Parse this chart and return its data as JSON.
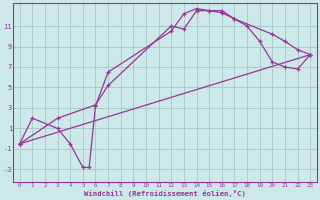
{
  "background_color": "#cce8e8",
  "grid_color": "#aacccc",
  "line_color": "#993399",
  "xlabel": "Windchill (Refroidissement éolien,°C)",
  "xlim": [
    -0.5,
    23.5
  ],
  "ylim": [
    -4.2,
    13.2
  ],
  "yticks": [
    -3,
    -1,
    1,
    3,
    5,
    7,
    9,
    11
  ],
  "xticks": [
    0,
    1,
    2,
    3,
    4,
    5,
    6,
    7,
    8,
    9,
    10,
    11,
    12,
    13,
    14,
    15,
    16,
    17,
    18,
    19,
    20,
    21,
    22,
    23
  ],
  "line1_x": [
    0,
    1,
    3,
    4,
    5,
    5.5,
    6,
    7,
    12,
    13,
    14,
    15,
    16,
    17,
    20,
    21,
    22,
    23
  ],
  "line1_y": [
    -0.5,
    2.0,
    1.0,
    -0.5,
    -2.8,
    -2.8,
    3.2,
    6.5,
    10.5,
    12.2,
    12.7,
    12.5,
    12.5,
    11.7,
    10.2,
    9.5,
    8.7,
    8.2
  ],
  "line2_x": [
    0,
    3,
    6,
    7,
    12,
    13,
    14,
    15,
    16,
    17,
    18,
    19,
    20,
    21,
    22,
    23
  ],
  "line2_y": [
    -0.5,
    2.0,
    3.3,
    5.2,
    11.0,
    10.7,
    12.5,
    12.5,
    12.3,
    11.7,
    11.0,
    9.5,
    7.5,
    7.0,
    6.8,
    8.2
  ],
  "line3_x": [
    0,
    23
  ],
  "line3_y": [
    -0.5,
    8.2
  ]
}
